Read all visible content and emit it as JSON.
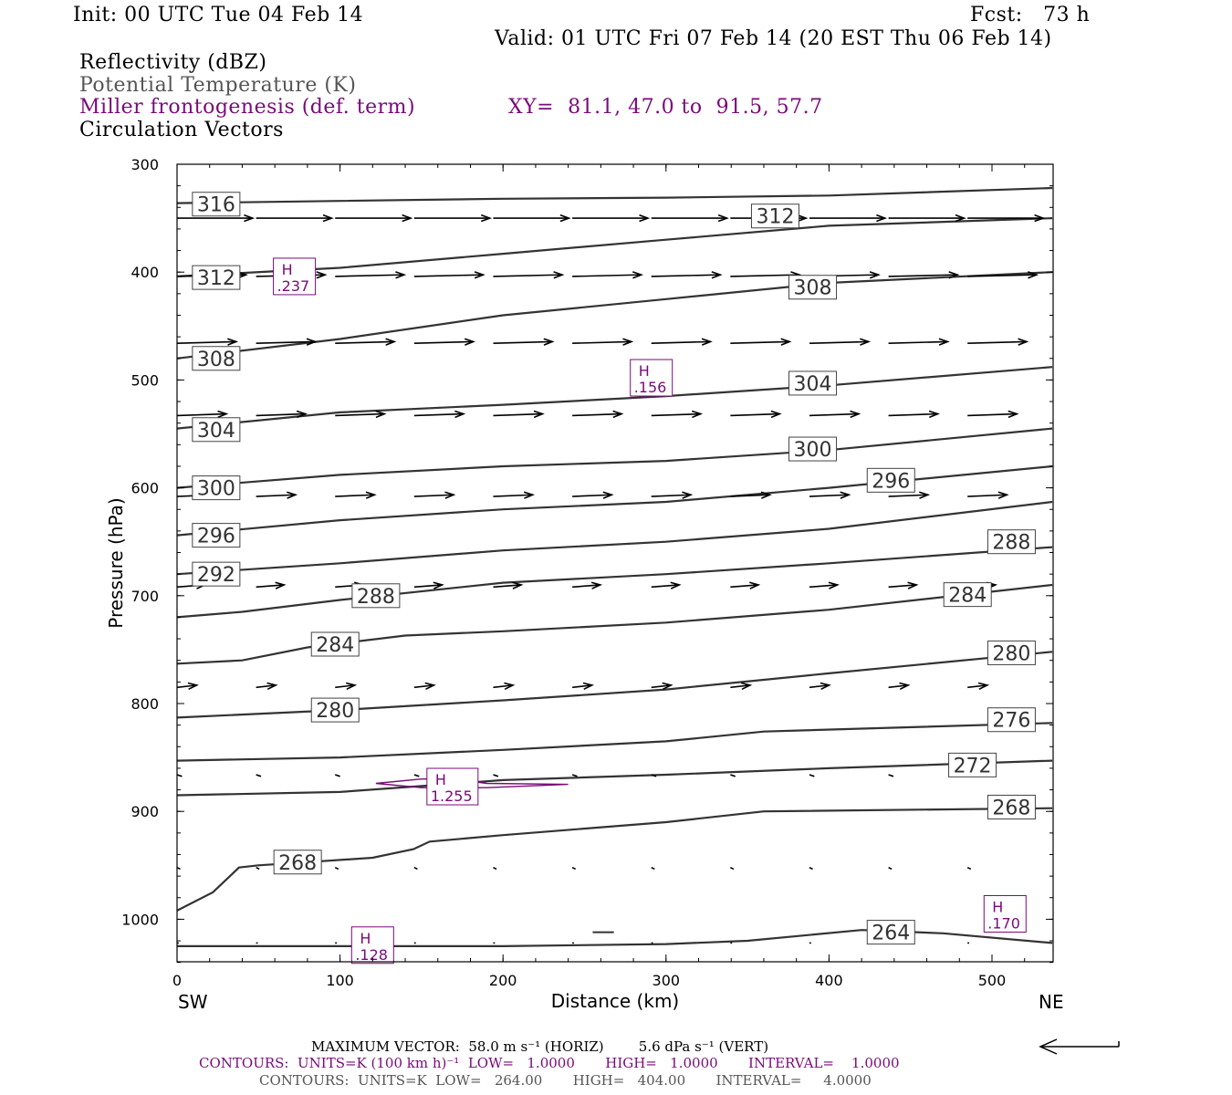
{
  "header": {
    "init": "Init: 00 UTC Tue 04 Feb 14",
    "fcst": "Fcst:   73 h",
    "valid": "Valid: 01 UTC Fri 07 Feb 14 (20 EST Thu 06 Feb 14)",
    "field1": "Reflectivity (dBZ)",
    "field2": "Potential Temperature (K)",
    "field3": "Miller frontogenesis (def. term)",
    "xy": "XY=  81.1, 47.0 to  91.5, 57.7",
    "field4": "Circulation Vectors"
  },
  "colors": {
    "purple": "#7a0a7a",
    "theta": "#333333",
    "gray_text": "#555555"
  },
  "footer": {
    "max_vector": "MAXIMUM VECTOR:  58.0 m s⁻¹ (HORIZ)        5.6 dPa s⁻¹ (VERT)",
    "contours1": "CONTOURS:  UNITS=K (100 km h)⁻¹  LOW=   1.0000       HIGH=   1.0000       INTERVAL=    1.0000",
    "contours2": "CONTOURS:  UNITS=K  LOW=   264.00       HIGH=   404.00       INTERVAL=     4.0000"
  },
  "chart_data": {
    "type": "line",
    "xlabel": "Distance (km)",
    "ylabel": "Pressure (hPa)",
    "xlim": [
      0,
      537
    ],
    "ylim": [
      1040,
      300
    ],
    "x_ticks": [
      "0",
      "100",
      "200",
      "300",
      "400",
      "500"
    ],
    "y_ticks": [
      "300",
      "400",
      "500",
      "600",
      "700",
      "800",
      "900",
      "1000"
    ],
    "x_end_labels": [
      "SW",
      "NE"
    ],
    "series": [
      {
        "theta": 316,
        "points": [
          [
            0,
            336
          ],
          [
            100,
            334
          ],
          [
            200,
            332
          ],
          [
            300,
            331
          ],
          [
            400,
            329
          ],
          [
            537,
            322
          ]
        ]
      },
      {
        "theta": 312,
        "points": [
          [
            0,
            404
          ],
          [
            100,
            396
          ],
          [
            200,
            383
          ],
          [
            300,
            370
          ],
          [
            400,
            357
          ],
          [
            537,
            350
          ]
        ]
      },
      {
        "theta": 308,
        "points": [
          [
            0,
            480
          ],
          [
            100,
            462
          ],
          [
            200,
            440
          ],
          [
            300,
            425
          ],
          [
            400,
            410
          ],
          [
            537,
            400
          ]
        ]
      },
      {
        "theta": 304,
        "points": [
          [
            0,
            545
          ],
          [
            100,
            530
          ],
          [
            200,
            523
          ],
          [
            300,
            515
          ],
          [
            400,
            505
          ],
          [
            537,
            488
          ]
        ]
      },
      {
        "theta": 300,
        "points": [
          [
            0,
            600
          ],
          [
            100,
            588
          ],
          [
            200,
            580
          ],
          [
            300,
            575
          ],
          [
            400,
            565
          ],
          [
            537,
            545
          ]
        ]
      },
      {
        "theta": 296,
        "points": [
          [
            0,
            644
          ],
          [
            100,
            630
          ],
          [
            200,
            620
          ],
          [
            300,
            613
          ],
          [
            400,
            600
          ],
          [
            537,
            580
          ]
        ]
      },
      {
        "theta": 292,
        "points": [
          [
            0,
            680
          ],
          [
            100,
            670
          ],
          [
            200,
            658
          ],
          [
            300,
            650
          ],
          [
            400,
            638
          ],
          [
            537,
            613
          ]
        ]
      },
      {
        "theta": 288,
        "points": [
          [
            0,
            720
          ],
          [
            40,
            715
          ],
          [
            100,
            704
          ],
          [
            200,
            688
          ],
          [
            300,
            680
          ],
          [
            400,
            670
          ],
          [
            537,
            655
          ]
        ]
      },
      {
        "theta": 284,
        "points": [
          [
            0,
            763
          ],
          [
            40,
            760
          ],
          [
            80,
            748
          ],
          [
            140,
            737
          ],
          [
            200,
            733
          ],
          [
            300,
            725
          ],
          [
            400,
            713
          ],
          [
            537,
            690
          ]
        ]
      },
      {
        "theta": 280,
        "points": [
          [
            0,
            813
          ],
          [
            100,
            806
          ],
          [
            200,
            797
          ],
          [
            300,
            787
          ],
          [
            400,
            772
          ],
          [
            537,
            752
          ]
        ]
      },
      {
        "theta": 276,
        "points": [
          [
            0,
            853
          ],
          [
            100,
            850
          ],
          [
            200,
            843
          ],
          [
            300,
            835
          ],
          [
            360,
            826
          ],
          [
            537,
            818
          ]
        ]
      },
      {
        "theta": 272,
        "points": [
          [
            0,
            885
          ],
          [
            100,
            882
          ],
          [
            200,
            871
          ],
          [
            300,
            866
          ],
          [
            400,
            860
          ],
          [
            537,
            853
          ]
        ]
      },
      {
        "theta": 268,
        "points": [
          [
            0,
            992
          ],
          [
            22,
            975
          ],
          [
            38,
            952
          ],
          [
            50,
            950
          ],
          [
            80,
            947
          ],
          [
            120,
            943
          ],
          [
            145,
            935
          ],
          [
            155,
            928
          ],
          [
            200,
            922
          ],
          [
            300,
            910
          ],
          [
            360,
            900
          ],
          [
            537,
            897
          ]
        ]
      },
      {
        "theta": 264,
        "points": [
          [
            0,
            1025
          ],
          [
            100,
            1025
          ],
          [
            200,
            1025
          ],
          [
            300,
            1023
          ],
          [
            350,
            1020
          ],
          [
            420,
            1010
          ],
          [
            470,
            1013
          ],
          [
            537,
            1022
          ]
        ]
      }
    ],
    "contour_labels": [
      {
        "text": "316",
        "x": 24,
        "p": 337
      },
      {
        "text": "312",
        "x": 24,
        "p": 405
      },
      {
        "text": "308",
        "x": 24,
        "p": 480
      },
      {
        "text": "304",
        "x": 24,
        "p": 546
      },
      {
        "text": "300",
        "x": 24,
        "p": 600
      },
      {
        "text": "296",
        "x": 24,
        "p": 644
      },
      {
        "text": "292",
        "x": 24,
        "p": 680
      },
      {
        "text": "312",
        "x": 367,
        "p": 348
      },
      {
        "text": "308",
        "x": 390,
        "p": 414
      },
      {
        "text": "304",
        "x": 390,
        "p": 503
      },
      {
        "text": "300",
        "x": 390,
        "p": 564
      },
      {
        "text": "296",
        "x": 438,
        "p": 593
      },
      {
        "text": "288",
        "x": 122,
        "p": 700
      },
      {
        "text": "284",
        "x": 97,
        "p": 745
      },
      {
        "text": "280",
        "x": 97,
        "p": 806
      },
      {
        "text": "268",
        "x": 74,
        "p": 947
      },
      {
        "text": "288",
        "x": 512,
        "p": 650
      },
      {
        "text": "284",
        "x": 485,
        "p": 699
      },
      {
        "text": "280",
        "x": 512,
        "p": 753
      },
      {
        "text": "276",
        "x": 512,
        "p": 815
      },
      {
        "text": "272",
        "x": 488,
        "p": 857
      },
      {
        "text": "268",
        "x": 512,
        "p": 896
      },
      {
        "text": "264",
        "x": 438,
        "p": 1012
      }
    ],
    "frontogenesis_maxima": [
      {
        "label": "H",
        "value": ".237",
        "x": 72,
        "p": 404
      },
      {
        "label": "H",
        "value": ".156",
        "x": 291,
        "p": 498
      },
      {
        "label": "H",
        "value": "1.255",
        "x": 169,
        "p": 877
      },
      {
        "label": "H",
        "value": ".128",
        "x": 120,
        "p": 1024
      },
      {
        "label": "H",
        "value": ".170",
        "x": 508,
        "p": 995
      }
    ],
    "frontogenesis_contour_1": [
      [
        122,
        874
      ],
      [
        150,
        870
      ],
      [
        170,
        870
      ],
      [
        190,
        874
      ],
      [
        240,
        875
      ],
      [
        190,
        878
      ],
      [
        150,
        878
      ],
      [
        122,
        874
      ]
    ],
    "vector_rows": [
      {
        "p": 350,
        "x0": 0,
        "dx": 48.5,
        "count": 11,
        "u": 46,
        "v": 0
      },
      {
        "p": 404,
        "x0": 0,
        "dx": 48.5,
        "count": 11,
        "u": 42,
        "v": -0.3
      },
      {
        "p": 466,
        "x0": 0,
        "dx": 48.5,
        "count": 11,
        "u": 36,
        "v": -0.3
      },
      {
        "p": 533,
        "x0": 0,
        "dx": 48.5,
        "count": 11,
        "u": 30,
        "v": -0.3
      },
      {
        "p": 608,
        "x0": 0,
        "dx": 48.5,
        "count": 11,
        "u": 24,
        "v": -0.3
      },
      {
        "p": 692,
        "x0": 0,
        "dx": 48.5,
        "count": 11,
        "u": 17,
        "v": -0.4
      },
      {
        "p": 785,
        "x0": 0,
        "dx": 48.5,
        "count": 11,
        "u": 12,
        "v": -0.4
      },
      {
        "p": 866,
        "x0": 0,
        "dx": 48.5,
        "count": 11,
        "u": 3,
        "v": 0.3
      },
      {
        "p": 952,
        "x0": 0,
        "dx": 48.5,
        "count": 11,
        "u": 2,
        "v": 0.3
      },
      {
        "p": 1022,
        "x0": 0,
        "dx": 48.5,
        "count": 11,
        "u": 1,
        "v": 0
      }
    ]
  }
}
